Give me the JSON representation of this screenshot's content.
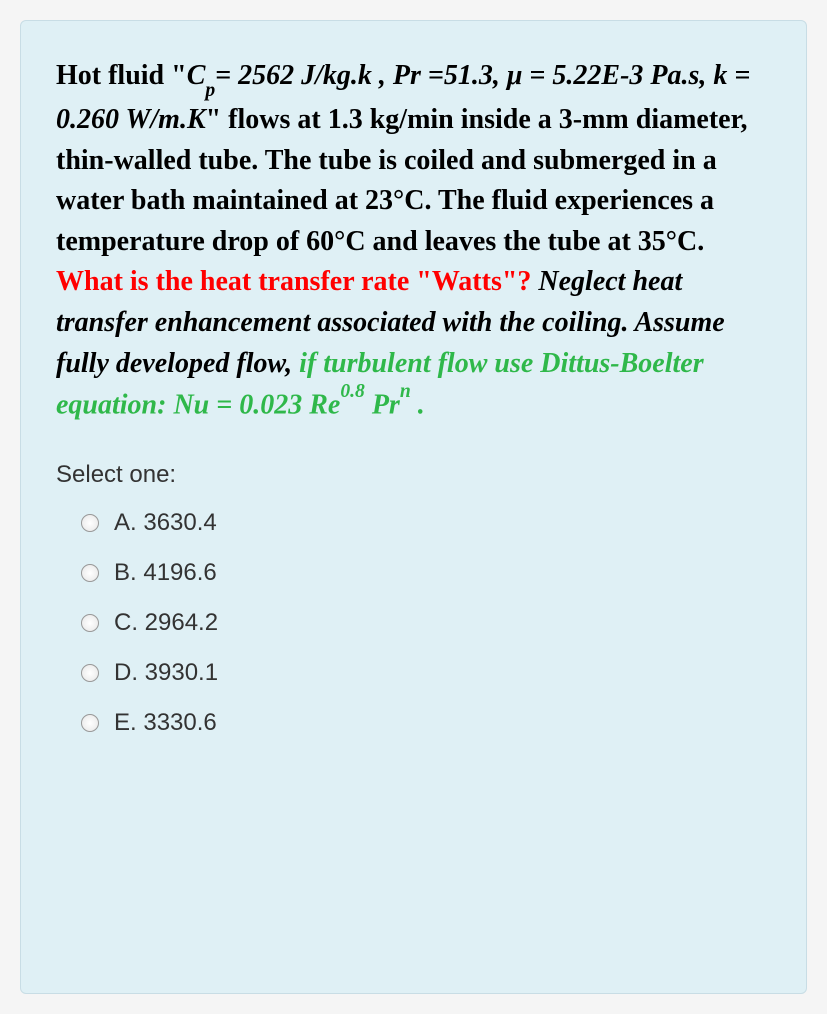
{
  "question": {
    "part1_bold": "Hot fluid \"",
    "part2_bold_italic": "C",
    "part2_sub_italic": "p",
    "part3_bold_italic": "= 2562 J/kg.k , Pr =51.3, μ = 5.22E-3 Pa.s, k = 0.260 W/m.K",
    "part4_bold": "\" flows at 1.3 kg/min inside a 3-mm diameter, thin-walled tube. The tube is coiled and submerged in a water bath maintained at 23°C. The fluid experiences a temperature drop of 60°C and leaves the tube at 35°C. ",
    "part5_red_bold": "What is the heat transfer rate \"Watts\"? ",
    "part6_italic_bold": "Neglect heat transfer enhancement associated with the coiling. Assume fully developed flow, ",
    "part7_green_italic_bold_pre": "if turbulent flow use Dittus-Boelter equation:  Nu = 0.023 Re",
    "part7_sup1": "0.8",
    "part7_mid": "  Pr",
    "part7_sup2": "n",
    "part7_end": " ."
  },
  "select_label": "Select one:",
  "options": [
    {
      "label": "A. 3630.4"
    },
    {
      "label": "B. 4196.6"
    },
    {
      "label": "C. 2964.2"
    },
    {
      "label": "D. 3930.1"
    },
    {
      "label": "E. 3330.6"
    }
  ],
  "colors": {
    "background": "#dff0f5",
    "red": "#ff0000",
    "green": "#2fb84a",
    "text": "#000000",
    "option_text": "#333333"
  }
}
